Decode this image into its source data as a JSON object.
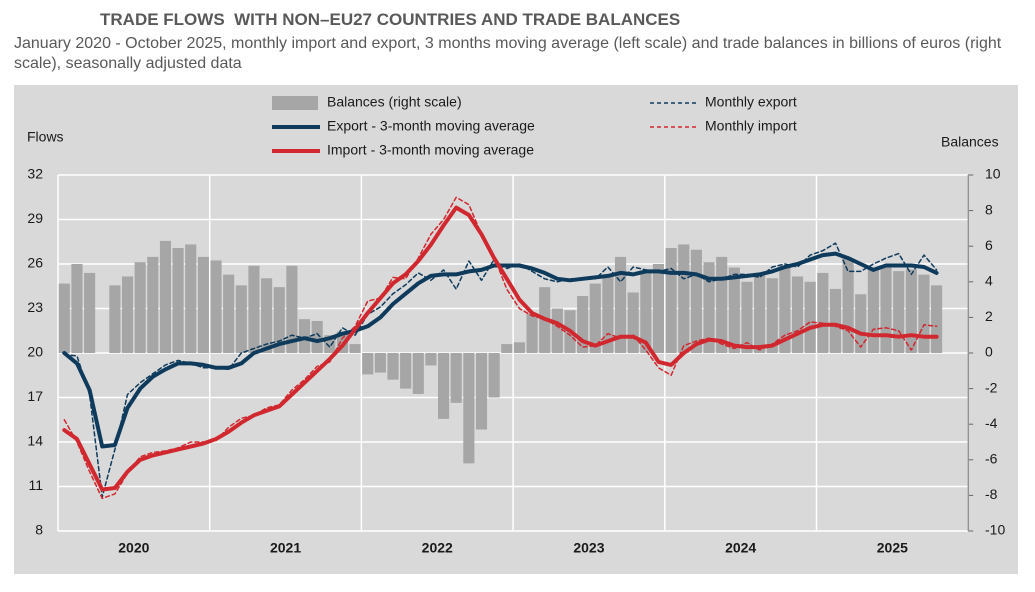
{
  "chart_data": {
    "type": "bar_line",
    "title": "TRADE FLOWS  WITH NON–EU27 COUNTRIES AND TRADE BALANCES",
    "subtitle": "January 2020 - October 2025, monthly import and export, 3 months moving average (left scale) and trade balances in billions of euros (right scale), seasonally adjusted data",
    "y_label": "Flows",
    "y2_label": "Balances",
    "years": [
      "2020",
      "2021",
      "2022",
      "2023",
      "2024",
      "2025"
    ],
    "months_per_year": 12,
    "ylim": [
      8,
      32
    ],
    "yticks": [
      8,
      11,
      14,
      17,
      20,
      23,
      26,
      29,
      32
    ],
    "y2lim": [
      -10,
      10
    ],
    "y2ticks": [
      -10,
      -8,
      -6,
      -4,
      -2,
      0,
      2,
      4,
      6,
      8,
      10
    ],
    "grid": true,
    "series": [
      {
        "name": "Balances (right scale)",
        "type": "bar",
        "axis": "y2",
        "color": "#a6a6a6",
        "values": [
          3.9,
          5.0,
          4.5,
          0,
          3.8,
          4.3,
          5.1,
          5.4,
          6.3,
          5.9,
          6.1,
          5.4,
          5.2,
          4.4,
          3.8,
          4.9,
          4.2,
          3.7,
          4.9,
          1.9,
          1.8,
          1.0,
          1.2,
          0.5,
          -1.2,
          -1.1,
          -1.5,
          -2.0,
          -2.3,
          -0.7,
          -3.7,
          -2.8,
          -6.2,
          -4.3,
          -2.5,
          0.5,
          0.6,
          2.2,
          3.7,
          2.5,
          2.4,
          3.2,
          3.9,
          4.4,
          5.4,
          3.4,
          4.6,
          5.0,
          5.9,
          6.1,
          5.8,
          5.1,
          5.4,
          4.8,
          4.0,
          4.5,
          4.2,
          4.9,
          4.3,
          4.0,
          4.5,
          3.6,
          5.3,
          3.3,
          4.7,
          4.8,
          4.6,
          4.7,
          4.4,
          3.8
        ]
      },
      {
        "name": "Export - 3-month moving average",
        "type": "line",
        "style": "solid",
        "color": "#0e3a5c",
        "values": [
          20.0,
          19.3,
          17.5,
          13.7,
          13.8,
          16.3,
          17.6,
          18.4,
          18.9,
          19.3,
          19.3,
          19.2,
          19.0,
          19.0,
          19.3,
          20.0,
          20.3,
          20.6,
          20.8,
          21.0,
          20.8,
          21.0,
          21.3,
          21.5,
          21.8,
          22.4,
          23.3,
          24.0,
          24.7,
          25.2,
          25.3,
          25.3,
          25.5,
          25.6,
          25.9,
          25.9,
          25.9,
          25.7,
          25.4,
          25.0,
          24.9,
          25.0,
          25.1,
          25.2,
          25.4,
          25.3,
          25.5,
          25.5,
          25.4,
          25.4,
          25.3,
          25.0,
          25.0,
          25.1,
          25.2,
          25.3,
          25.5,
          25.8,
          26.0,
          26.3,
          26.6,
          26.7,
          26.4,
          26.0,
          25.6,
          25.9,
          25.9,
          25.9,
          25.8,
          25.4
        ]
      },
      {
        "name": "Import - 3-month moving average",
        "type": "line",
        "style": "solid",
        "color": "#d0282e",
        "values": [
          14.8,
          14.2,
          12.5,
          10.8,
          10.9,
          12.0,
          12.8,
          13.1,
          13.3,
          13.5,
          13.7,
          13.9,
          14.2,
          14.7,
          15.3,
          15.8,
          16.1,
          16.4,
          17.2,
          18.0,
          18.8,
          19.6,
          20.5,
          21.6,
          22.7,
          23.7,
          24.7,
          25.3,
          26.2,
          27.3,
          28.6,
          29.8,
          29.3,
          28.0,
          26.4,
          25.0,
          23.6,
          22.7,
          22.3,
          22.0,
          21.5,
          20.8,
          20.5,
          20.8,
          21.1,
          21.1,
          20.7,
          19.4,
          19.2,
          20.0,
          20.6,
          20.9,
          20.8,
          20.5,
          20.4,
          20.4,
          20.5,
          20.9,
          21.3,
          21.7,
          21.9,
          21.9,
          21.7,
          21.3,
          21.2,
          21.2,
          21.1,
          21.2,
          21.1,
          21.1
        ]
      },
      {
        "name": "Monthly export",
        "type": "line",
        "style": "dashed",
        "color": "#0e3a5c",
        "values": [
          19.9,
          19.8,
          17.2,
          10.3,
          13.5,
          17.2,
          18.0,
          18.6,
          19.2,
          19.5,
          19.3,
          19.0,
          19.0,
          18.9,
          20.0,
          20.3,
          20.6,
          20.8,
          21.2,
          21.0,
          21.3,
          20.4,
          21.7,
          21.2,
          22.6,
          23.1,
          24.0,
          24.6,
          25.4,
          24.9,
          25.6,
          24.3,
          26.2,
          24.9,
          26.3,
          25.7,
          26.0,
          25.5,
          25.0,
          24.8,
          25.0,
          25.0,
          25.0,
          25.8,
          24.8,
          25.8,
          25.6,
          25.5,
          25.7,
          25.0,
          25.3,
          24.8,
          25.0,
          25.3,
          25.3,
          25.1,
          25.8,
          26.0,
          25.8,
          26.6,
          26.9,
          27.4,
          25.5,
          25.5,
          26.0,
          26.4,
          26.7,
          25.3,
          26.6,
          25.6
        ]
      },
      {
        "name": "Monthly import",
        "type": "line",
        "style": "dashed",
        "color": "#d0282e",
        "values": [
          15.5,
          14.0,
          12.0,
          10.2,
          10.5,
          11.9,
          13.0,
          13.3,
          13.4,
          13.6,
          14.0,
          14.0,
          14.1,
          15.0,
          15.6,
          15.8,
          16.3,
          16.5,
          17.5,
          18.2,
          19.1,
          19.4,
          21.0,
          21.8,
          23.5,
          23.7,
          25.1,
          25.0,
          26.4,
          28.0,
          29.0,
          30.5,
          30.0,
          28.0,
          26.5,
          24.3,
          23.0,
          22.5,
          22.3,
          21.8,
          21.2,
          20.4,
          20.5,
          21.3,
          21.0,
          21.2,
          20.2,
          19.0,
          18.5,
          20.5,
          20.8,
          21.0,
          20.6,
          20.3,
          20.7,
          20.2,
          20.6,
          21.2,
          21.5,
          22.1,
          22.0,
          21.8,
          21.5,
          20.4,
          21.6,
          21.7,
          21.5,
          20.2,
          21.9,
          21.8
        ]
      }
    ]
  }
}
